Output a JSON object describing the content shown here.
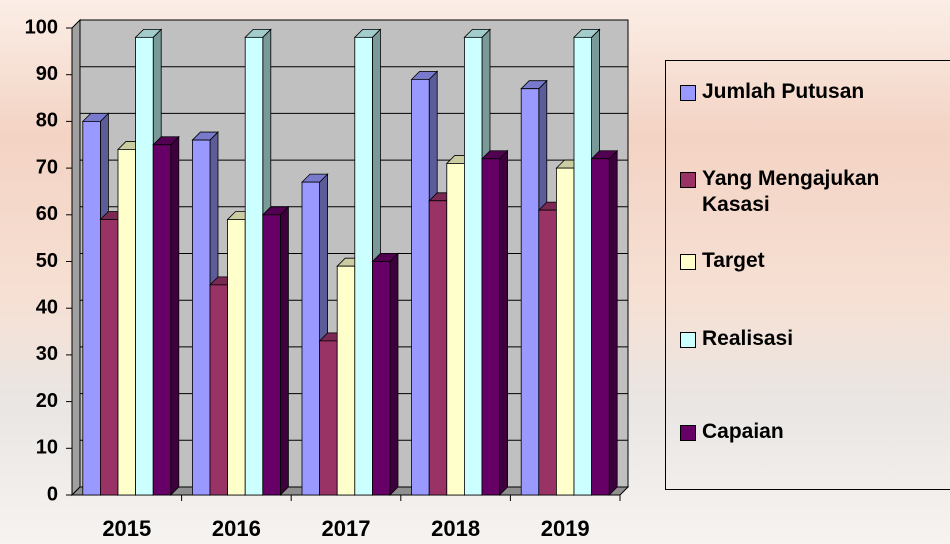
{
  "chart_data": {
    "type": "bar3d",
    "categories": [
      "2015",
      "2016",
      "2017",
      "2018",
      "2019"
    ],
    "series": [
      {
        "name": "Jumlah Putusan",
        "color": "#9999ff",
        "values": [
          80,
          76,
          67,
          89,
          87
        ]
      },
      {
        "name": "Yang Mengajukan Kasasi",
        "color": "#993366",
        "values": [
          59,
          45,
          33,
          63,
          61
        ]
      },
      {
        "name": "Target",
        "color": "#ffffcc",
        "values": [
          74,
          59,
          49,
          71,
          70
        ]
      },
      {
        "name": "Realisasi",
        "color": "#ccffff",
        "values": [
          98,
          98,
          98,
          98,
          98
        ]
      },
      {
        "name": "Capaian",
        "color": "#660066",
        "values": [
          75,
          60,
          50,
          72,
          72
        ]
      }
    ],
    "ylim": [
      0,
      100
    ],
    "yticks": [
      0,
      10,
      20,
      30,
      40,
      50,
      60,
      70,
      80,
      90,
      100
    ],
    "grid": true,
    "legend": "right"
  }
}
